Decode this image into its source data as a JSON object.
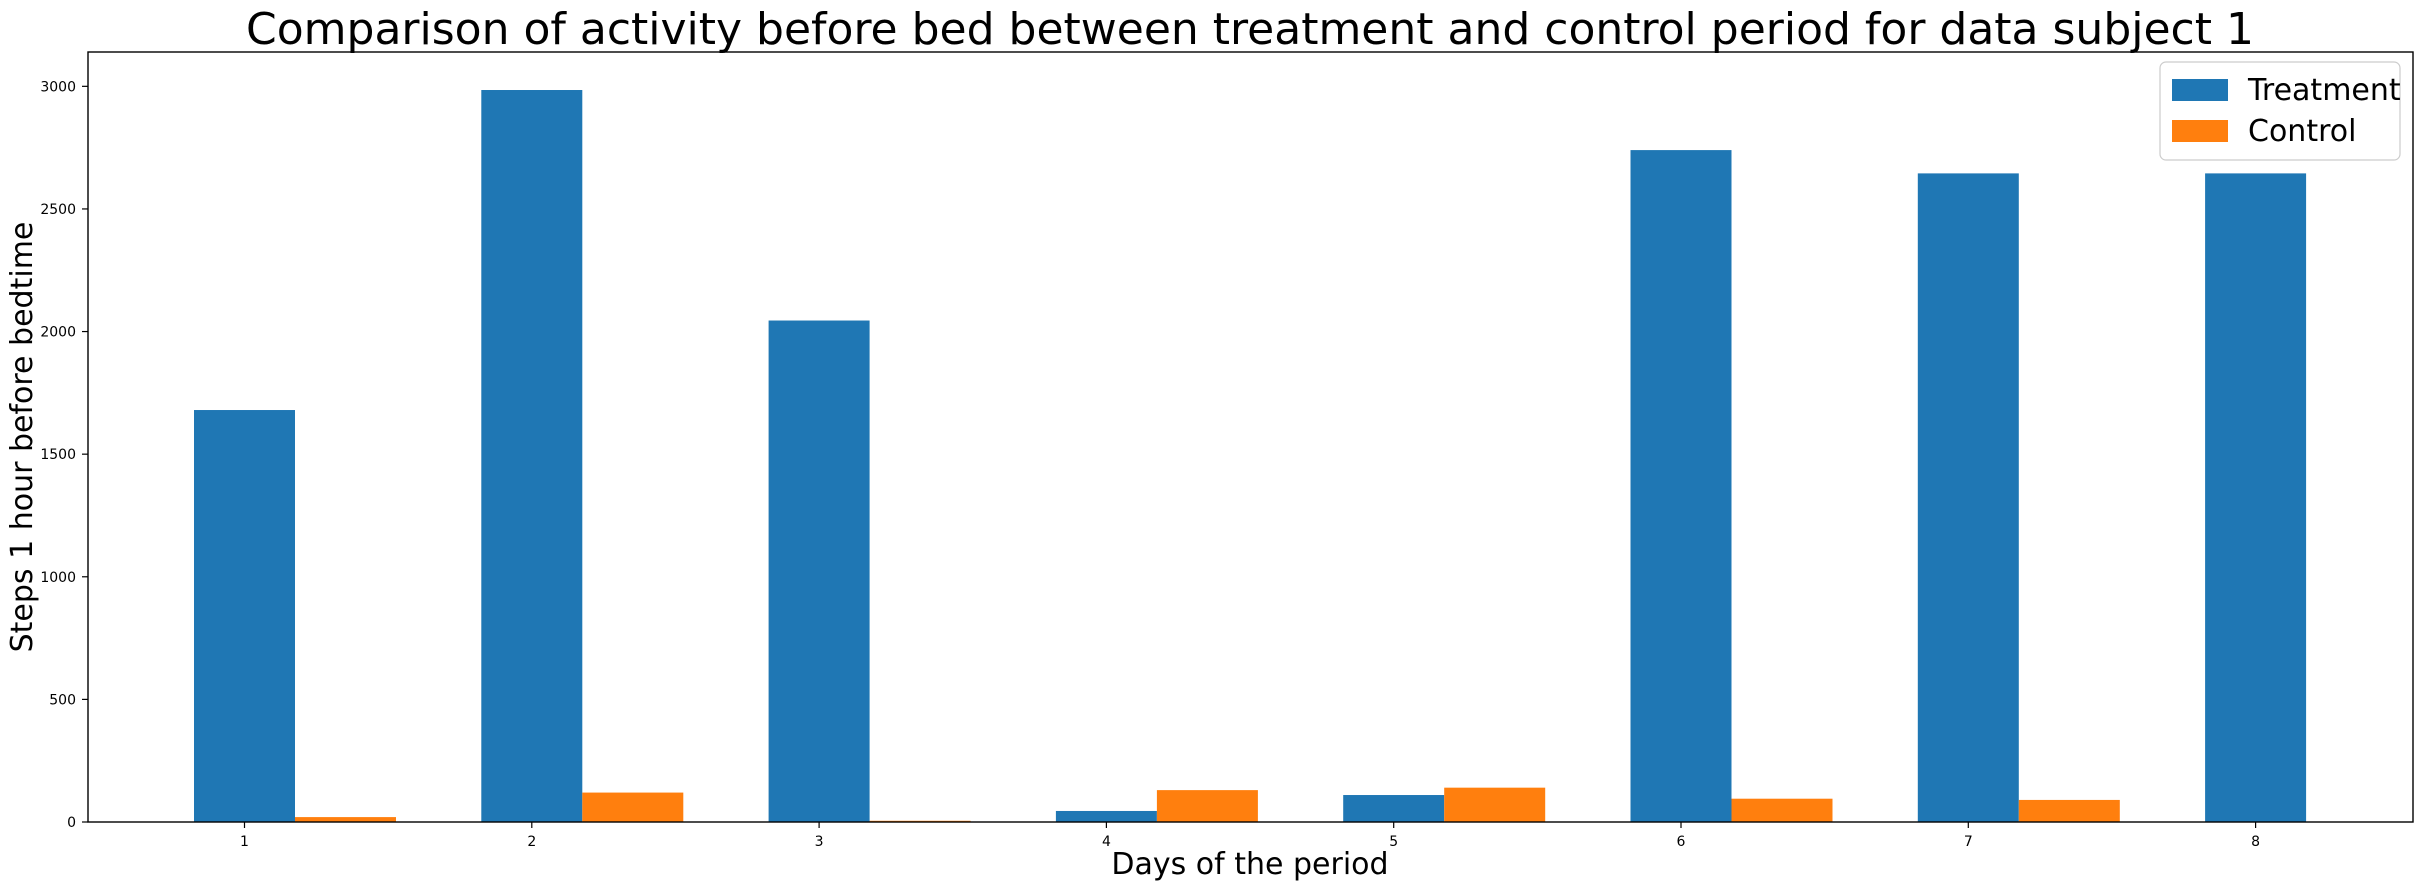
{
  "chart_data": {
    "type": "bar",
    "title": "Comparison of activity before bed between treatment and control period for data subject 1",
    "xlabel": "Days of the period",
    "ylabel": "Steps 1 hour before bedtime",
    "categories": [
      "1",
      "2",
      "3",
      "4",
      "5",
      "6",
      "7",
      "8"
    ],
    "ylim": [
      0,
      3140
    ],
    "yticks": [
      0,
      500,
      1000,
      1500,
      2000,
      2500,
      3000
    ],
    "grid": false,
    "legend_position": "top-right",
    "series": [
      {
        "name": "Treatment",
        "color": "#1f77b4",
        "values": [
          1680,
          2985,
          2045,
          45,
          110,
          2740,
          2645,
          2645
        ]
      },
      {
        "name": "Control",
        "color": "#ff7f0e",
        "values": [
          20,
          120,
          5,
          130,
          140,
          95,
          90,
          0
        ]
      }
    ]
  }
}
